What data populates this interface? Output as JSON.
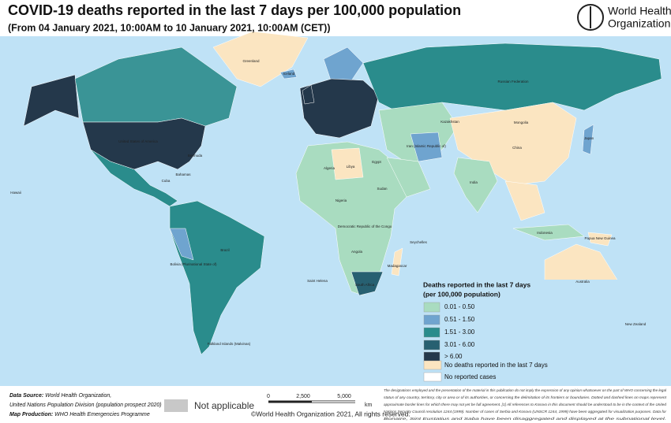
{
  "header": {
    "title": "COVID-19 deaths reported in the last 7 days per 100,000 population",
    "subtitle": "(From 04 January 2021, 10:00AM  to 10 January 2021, 10:00AM (CET))",
    "logo_line1": "World Health",
    "logo_line2": "Organization"
  },
  "legend": {
    "title_line1": "Deaths reported in the last 7 days",
    "title_line2": "(per 100,000 population)",
    "items": [
      {
        "label": "0.01 - 0.50",
        "color": "#a9dcc0"
      },
      {
        "label": "0.51 - 1.50",
        "color": "#6fa4cf"
      },
      {
        "label": "1.51 - 3.00",
        "color": "#2a8c8c"
      },
      {
        "label": "3.01 - 6.00",
        "color": "#276071"
      },
      {
        "label": "> 6.00",
        "color": "#24384b"
      },
      {
        "label": "No deaths reported in the last 7 days",
        "color": "#fbe5c1"
      },
      {
        "label": "No reported cases",
        "color": "#ffffff"
      }
    ]
  },
  "footer": {
    "data_source_label": "Data Source:",
    "data_source": "World Health Organization,",
    "data_source_line2": "United Nations Population Division (population prospect 2020)",
    "map_production_label": "Map Production:",
    "map_production": "WHO Health Emergencies Programme",
    "not_applicable": "Not applicable",
    "scale": [
      "0",
      "2,500",
      "5,000",
      "km"
    ],
    "copyright": "©World Health Organization  2021,  All rights reserved.",
    "disclaimer": [
      "The designations employed and the presentation of the material in this publication do not imply the expression of any opinion whatsoever on the part of WHO concerning the legal",
      "status of any country, territory, city or area or of its authorities, or concerning the delimitation of its frontiers or boundaries. Dotted and dashed lines on maps represent",
      "approximate border lines for which there may not yet be full agreement. [1] All references to Kosovo in this document should be understood to be in the context of the United",
      "Nations Security Council resolution 1244 (1999). Number of cases of Serbia and Kosovo (UNSCR 1244, 1999) have been aggregated for visualization purposes. Data for",
      "Bonaire, Sint Eustatius and Saba have been disaggregated and displayed at the subnational level."
    ]
  },
  "map": {
    "labels": [
      "Greenland",
      "United States of America",
      "Bermuda",
      "Bahamas",
      "Cuba",
      "Brazil",
      "Bolivia (Plurinational State of)",
      "Falkland Islands (Malvinas)",
      "Iceland",
      "Russian Federation",
      "Kazakhstan",
      "Mongolia",
      "China",
      "India",
      "Iran (Islamic Republic of)",
      "Algeria",
      "Libya",
      "Egypt",
      "Sudan",
      "Nigeria",
      "Democratic Republic of the Congo",
      "Angola",
      "South Africa",
      "Madagascar",
      "Australia",
      "Indonesia",
      "Papua New Guinea",
      "New Zealand",
      "Japan",
      "Hawaii",
      "Saint Helena",
      "Seychelles"
    ]
  }
}
